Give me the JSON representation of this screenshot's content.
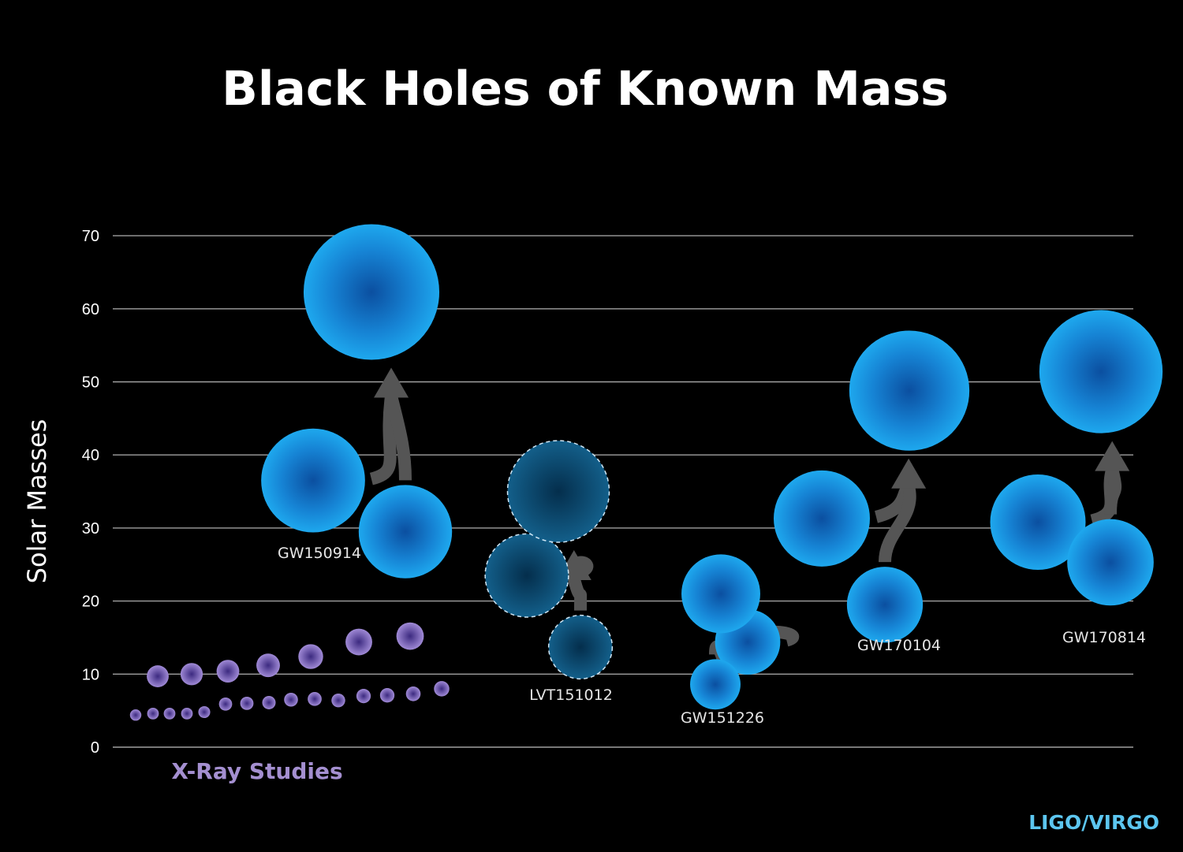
{
  "chart_data": {
    "type": "scatter",
    "title": "Black Holes of Known Mass",
    "ylabel": "Solar Masses",
    "ylim": [
      0,
      70
    ],
    "yticks": [
      0,
      10,
      20,
      30,
      40,
      50,
      60,
      70
    ],
    "grid": true,
    "colors": {
      "gw": "#1e9be6",
      "candidate": "#1a6f9a",
      "xray": "#9078c8",
      "arrow": "#555555"
    },
    "xray_studies": {
      "label": "X-Ray Studies",
      "masses": [
        9.7,
        10.0,
        10.4,
        11.2,
        12.4,
        14.4,
        15.2,
        4.4,
        4.6,
        4.6,
        4.6,
        4.8,
        5.9,
        6.0,
        6.1,
        6.5,
        6.6,
        6.4,
        7.0,
        7.1,
        7.3,
        8.0
      ]
    },
    "events": [
      {
        "name": "GW150914",
        "candidate": false,
        "primary": 36.5,
        "secondary": 29.5,
        "final": 62.3
      },
      {
        "name": "LVT151012",
        "candidate": true,
        "primary": 23.5,
        "secondary": 13.7,
        "final": 35.0
      },
      {
        "name": "GW151226",
        "candidate": false,
        "primary": 14.4,
        "secondary": 8.6,
        "final": 21.0
      },
      {
        "name": "GW170104",
        "candidate": false,
        "primary": 31.3,
        "secondary": 19.5,
        "final": 48.8
      },
      {
        "name": "GW170814",
        "candidate": false,
        "primary": 30.8,
        "secondary": 25.3,
        "final": 51.4
      }
    ],
    "credit": "LIGO/VIRGO"
  }
}
